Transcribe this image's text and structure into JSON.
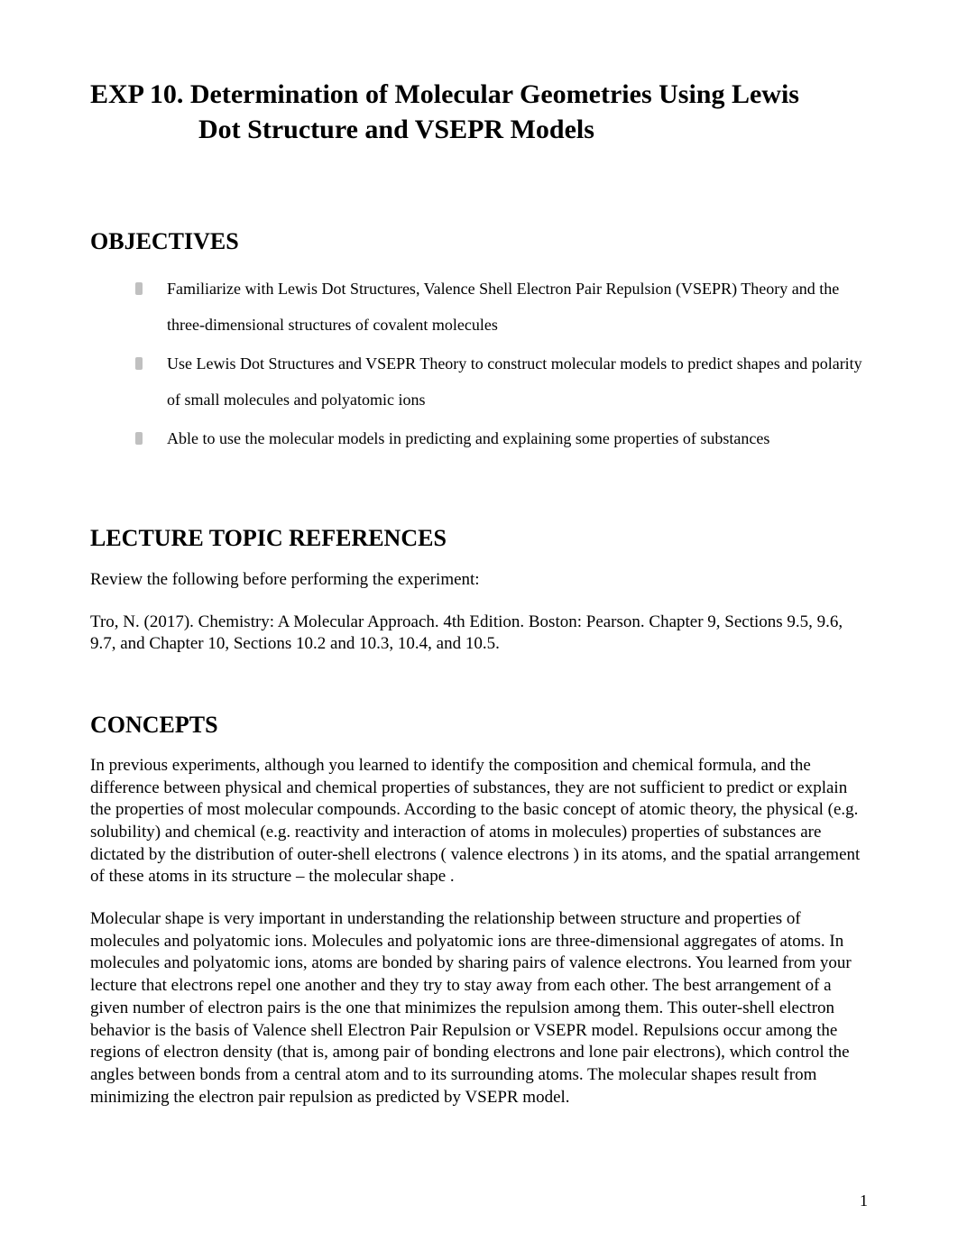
{
  "title": {
    "line1": "EXP 10.  Determination of Molecular Geometries Using Lewis",
    "line2": "Dot Structure and VSEPR Models"
  },
  "sections": {
    "objectives": {
      "heading": "OBJECTIVES",
      "items": [
        "Familiarize with Lewis Dot Structures, Valence Shell Electron Pair Repulsion (VSEPR) Theory and the three-dimensional structures of covalent molecules",
        "Use Lewis Dot Structures and VSEPR Theory to construct molecular models to predict shapes and polarity of small molecules and polyatomic ions",
        "Able to use the molecular models in predicting and explaining some properties of substances"
      ]
    },
    "references": {
      "heading": "LECTURE TOPIC REFERENCES",
      "intro": "Review the following before performing the experiment:",
      "citation": "Tro, N. (2017). Chemistry: A Molecular Approach. 4th Edition. Boston: Pearson. Chapter 9, Sections 9.5, 9.6, 9.7, and Chapter 10, Sections 10.2 and 10.3, 10.4, and 10.5."
    },
    "concepts": {
      "heading": "CONCEPTS",
      "para1": "In previous experiments, although you learned to identify the composition and chemical formula, and the difference between physical and chemical properties of substances, they are not sufficient to predict or explain the properties of most molecular compounds.     According to the basic concept of atomic theory, the physical (e.g. solubility) and chemical (e.g. reactivity and interaction of atoms in molecules) properties of substances are dictated by the distribution of outer-shell electrons ( valence electrons ) in its atoms, and the spatial arrangement of these atoms in its structure – the  molecular shape .",
      "para2": "Molecular shape is very important in understanding the relationship between structure and properties of molecules and polyatomic ions.   Molecules and polyatomic ions are three-dimensional aggregates of atoms.   In molecules and polyatomic ions, atoms are bonded by sharing pairs of valence electrons.   You learned from your lecture that electrons repel one another and they try to stay away from each other.      The best arrangement of a given number of electron pairs is the one that minimizes the repulsion among them.      This outer-shell electron behavior is the basis of  Valence shell Electron Pair Repulsion  or VSEPR model.  Repulsions occur among the regions of electron density (that is, among pair of bonding electrons and lone pair electrons), which control the angles between bonds from a central atom and to its surrounding atoms.   The molecular shapes result from minimizing the electron pair repulsion as predicted by VSEPR model."
    }
  },
  "page_number": "1",
  "styling": {
    "background_color": "#ffffff",
    "text_color": "#000000",
    "bullet_color": "#c0c0c0",
    "title_fontsize": 30,
    "heading_fontsize": 26,
    "body_fontsize": 19,
    "list_fontsize": 18,
    "font_family": "Times New Roman"
  }
}
